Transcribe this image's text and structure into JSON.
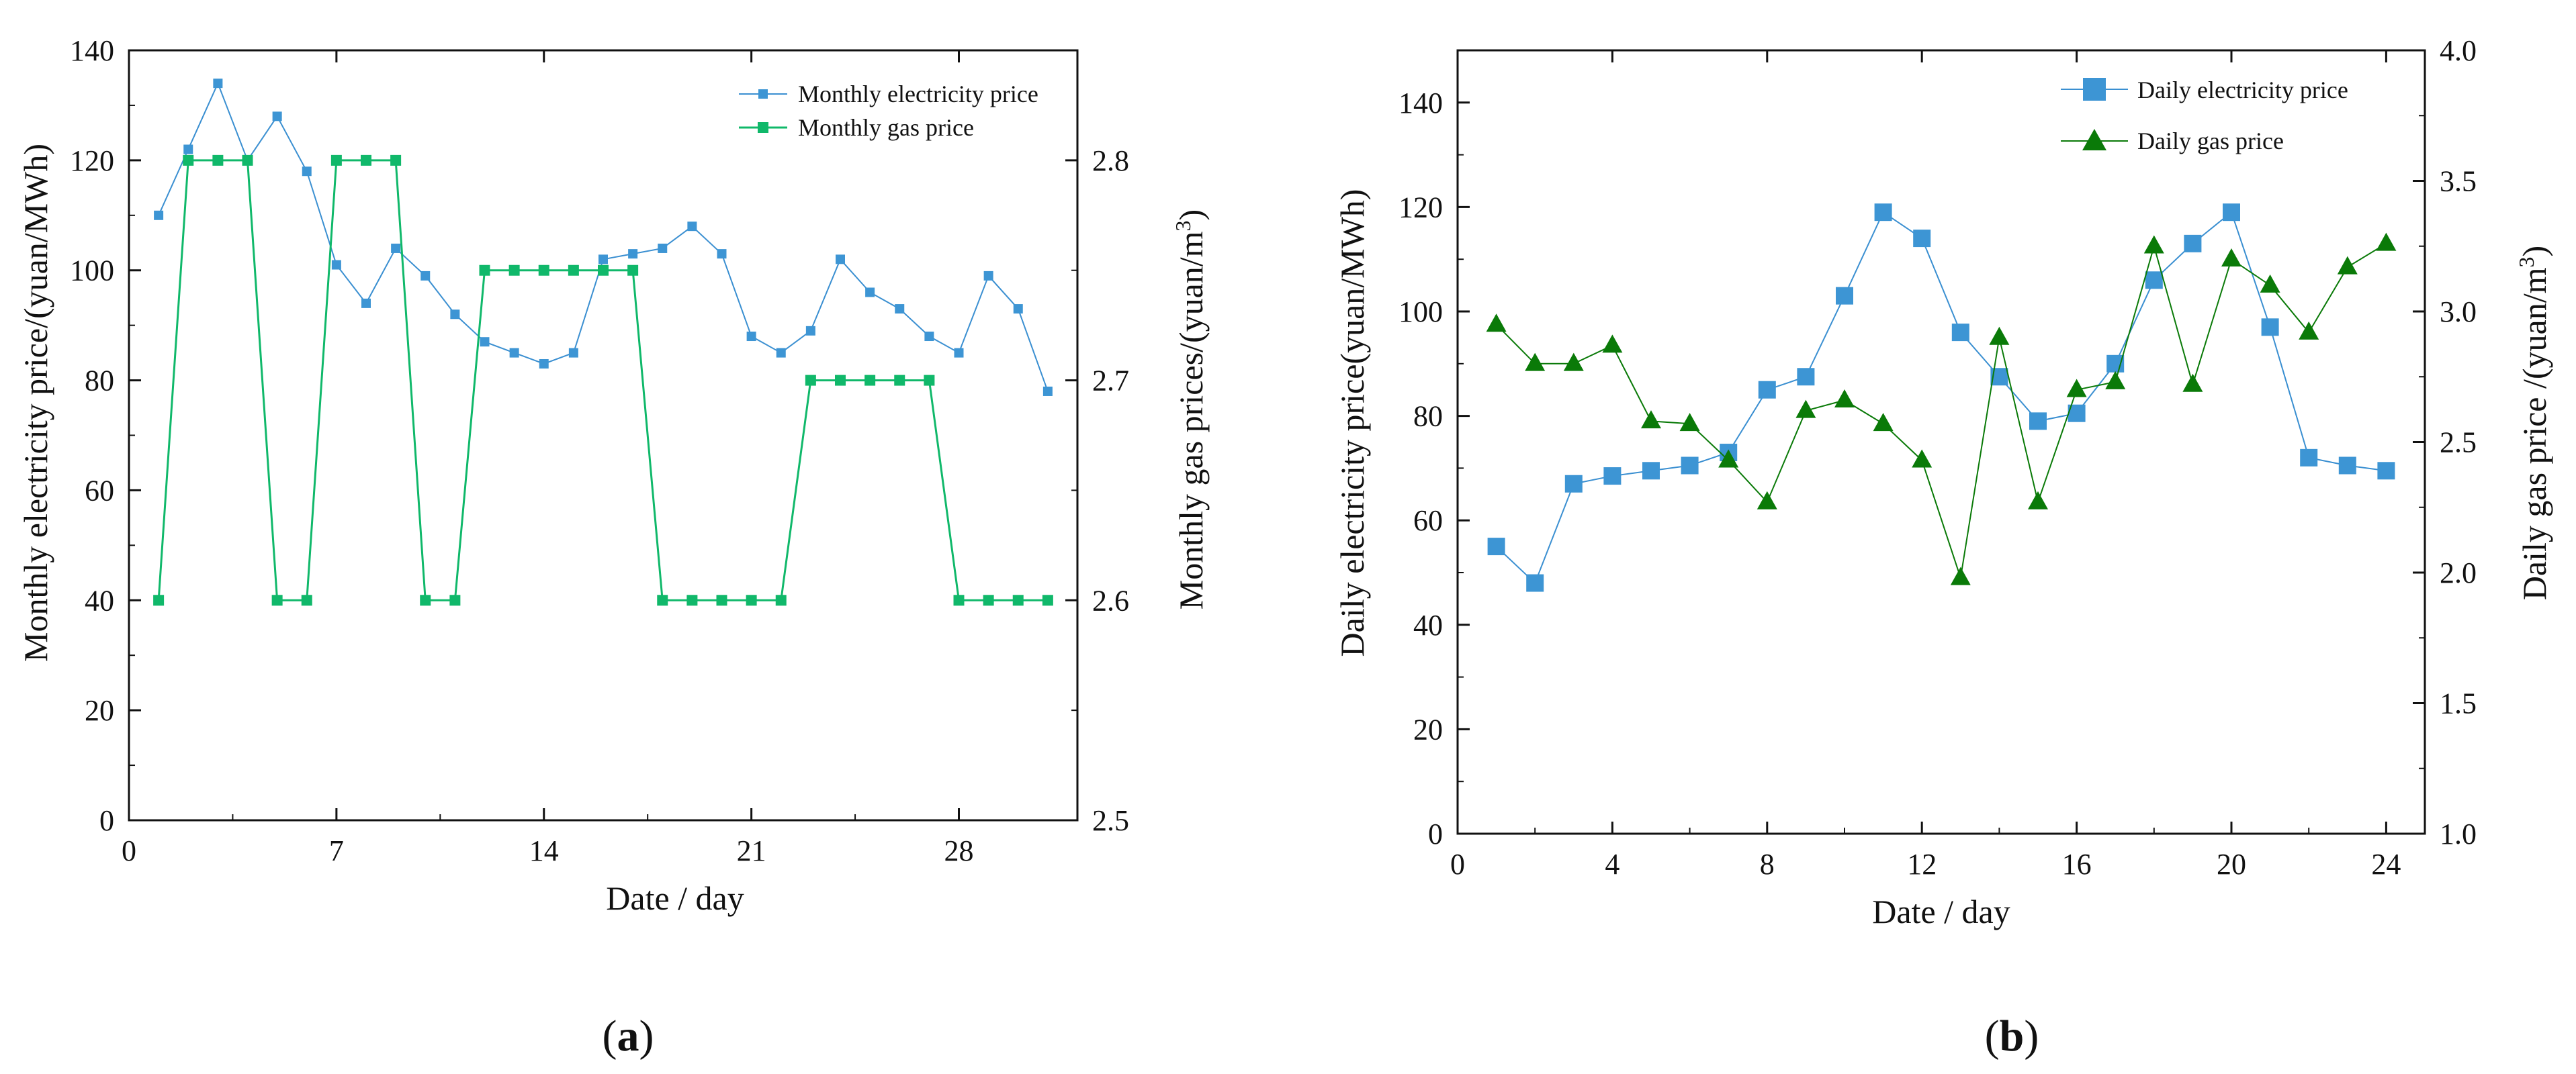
{
  "colors": {
    "electricity": "#3a8fd1",
    "electricity_marker": "#3d95d4",
    "gas_a": "#10b86a",
    "gas_b": "#0a7a08",
    "axis": "#111111"
  },
  "chart_data": [
    {
      "type": "line",
      "panel": "a",
      "xlabel": "Date / day",
      "ylabel": "Monthly electricity price/(yuan/MWh)",
      "y2label_main": "Monthly gas prices/(yuan/m",
      "y2label_sup": "3",
      "y2label_end": ")",
      "xlim": [
        0,
        32
      ],
      "ylim": [
        0,
        140
      ],
      "y2lim": [
        2.5,
        2.85
      ],
      "xticks": [
        0,
        7,
        14,
        21,
        28
      ],
      "yticks": [
        0,
        20,
        40,
        60,
        80,
        100,
        120,
        140
      ],
      "y2ticks": [
        2.5,
        2.6,
        2.7,
        2.8
      ],
      "y2tick_labels": [
        "2.5",
        "2.6",
        "2.7",
        "2.8"
      ],
      "legend_position": "top-right",
      "series": [
        {
          "name": "Monthly electricity price",
          "axis": "left",
          "marker": "square",
          "x": [
            1,
            2,
            3,
            4,
            5,
            6,
            7,
            8,
            9,
            10,
            11,
            12,
            13,
            14,
            15,
            16,
            17,
            18,
            19,
            20,
            21,
            22,
            23,
            24,
            25,
            26,
            27,
            28,
            29,
            30,
            31
          ],
          "values": [
            110,
            122,
            134,
            120,
            128,
            118,
            101,
            94,
            104,
            99,
            92,
            87,
            85,
            83,
            85,
            102,
            103,
            104,
            108,
            103,
            88,
            85,
            89,
            102,
            96,
            93,
            88,
            85,
            99,
            93,
            78
          ]
        },
        {
          "name": "Monthly gas price",
          "axis": "right",
          "marker": "square",
          "x": [
            1,
            2,
            3,
            4,
            5,
            6,
            7,
            8,
            9,
            10,
            11,
            12,
            13,
            14,
            15,
            16,
            17,
            18,
            19,
            20,
            21,
            22,
            23,
            24,
            25,
            26,
            27,
            28,
            29,
            30,
            31
          ],
          "values": [
            2.6,
            2.8,
            2.8,
            2.8,
            2.6,
            2.6,
            2.8,
            2.8,
            2.8,
            2.6,
            2.6,
            2.75,
            2.75,
            2.75,
            2.75,
            2.75,
            2.75,
            2.6,
            2.6,
            2.6,
            2.6,
            2.6,
            2.7,
            2.7,
            2.7,
            2.7,
            2.7,
            2.6,
            2.6,
            2.6,
            2.6
          ]
        }
      ]
    },
    {
      "type": "line",
      "panel": "b",
      "xlabel": "Date / day",
      "ylabel": "Daily electricity price(yuan/MWh)",
      "y2label_main": "Daily gas price /(yuan/m",
      "y2label_sup": "3",
      "y2label_end": ")",
      "xlim": [
        0,
        25
      ],
      "ylim": [
        0,
        150
      ],
      "y2lim": [
        1.0,
        4.0
      ],
      "xticks": [
        0,
        4,
        8,
        12,
        16,
        20,
        24
      ],
      "yticks": [
        0,
        20,
        40,
        60,
        80,
        100,
        120,
        140
      ],
      "y2ticks": [
        1.0,
        1.5,
        2.0,
        2.5,
        3.0,
        3.5,
        4.0
      ],
      "y2tick_labels": [
        "1.0",
        "1.5",
        "2.0",
        "2.5",
        "3.0",
        "3.5",
        "4.0"
      ],
      "legend_position": "top-right",
      "series": [
        {
          "name": "Daily electricity price",
          "axis": "left",
          "marker": "square",
          "x": [
            1,
            2,
            3,
            4,
            5,
            6,
            7,
            8,
            9,
            10,
            11,
            12,
            13,
            14,
            15,
            16,
            17,
            18,
            19,
            20,
            21,
            22,
            23,
            24
          ],
          "values": [
            55,
            48,
            67,
            68.5,
            69.5,
            70.5,
            73,
            85,
            87.5,
            103,
            119,
            114,
            96,
            87.5,
            79,
            80.5,
            90,
            106,
            113,
            119,
            97,
            72,
            70.5,
            69.5
          ]
        },
        {
          "name": "Daily gas price",
          "axis": "right",
          "marker": "triangle",
          "x": [
            1,
            2,
            3,
            4,
            5,
            6,
            7,
            8,
            9,
            10,
            11,
            12,
            13,
            14,
            15,
            16,
            17,
            18,
            19,
            20,
            21,
            22,
            23,
            24
          ],
          "values": [
            2.95,
            2.8,
            2.8,
            2.87,
            2.58,
            2.57,
            2.43,
            2.27,
            2.62,
            2.66,
            2.57,
            2.43,
            1.98,
            2.9,
            2.27,
            2.7,
            2.73,
            3.25,
            2.72,
            3.2,
            3.1,
            2.92,
            3.17,
            3.26
          ]
        }
      ]
    }
  ],
  "panel_labels": [
    {
      "open": "(",
      "letter": "a",
      "close": ")"
    },
    {
      "open": "(",
      "letter": "b",
      "close": ")"
    }
  ]
}
